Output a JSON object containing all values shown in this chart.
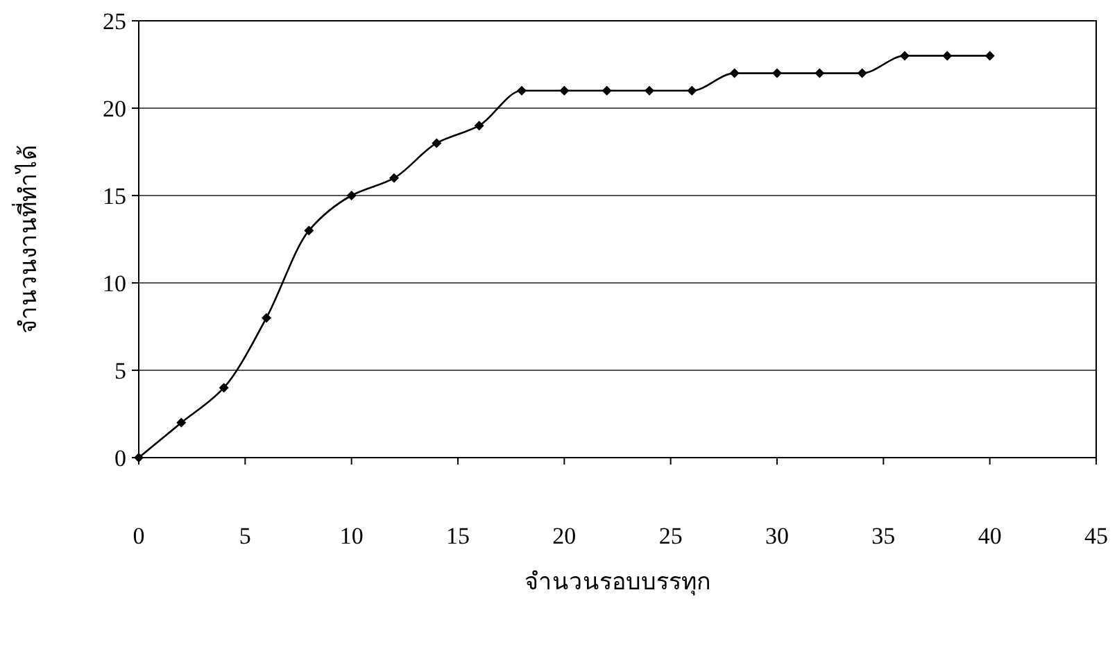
{
  "chart_data": {
    "type": "line",
    "xlabel": "จำนวนรอบบรรทุก",
    "ylabel": "จำนวนงานที่ทำได้",
    "x": [
      0,
      2,
      4,
      6,
      8,
      10,
      12,
      14,
      16,
      18,
      20,
      22,
      24,
      26,
      28,
      30,
      32,
      34,
      36,
      38,
      40
    ],
    "series": [
      {
        "color": "#000000",
        "values": [
          0,
          2,
          4,
          8,
          13,
          15,
          16,
          18,
          19,
          21,
          21,
          21,
          21,
          21,
          22,
          22,
          22,
          22,
          23,
          23,
          23
        ]
      }
    ],
    "xlim": [
      0,
      45
    ],
    "xticks": [
      0,
      5,
      10,
      15,
      20,
      25,
      30,
      35,
      40,
      45
    ],
    "ylim": [
      0,
      25
    ],
    "yticks": [
      0,
      5,
      10,
      15,
      20,
      25
    ],
    "grid": "y",
    "marker": "diamond",
    "line_style": "solid"
  }
}
